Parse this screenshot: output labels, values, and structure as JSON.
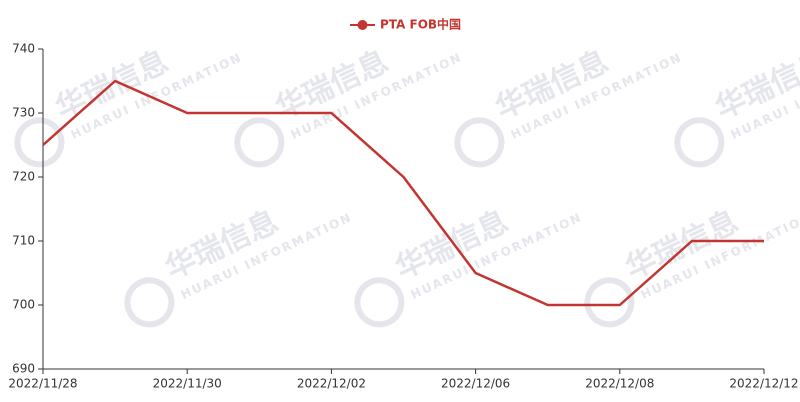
{
  "chart_data": {
    "type": "line",
    "watermark": "华瑞信息",
    "watermark_en": "HUARUI INFORMATION",
    "categories": [
      "2022/11/28",
      null,
      "2022/11/30",
      null,
      "2022/12/02",
      null,
      "2022/12/06",
      null,
      "2022/12/08",
      null,
      "2022/12/12"
    ],
    "series": [
      {
        "name": "PTA FOB中国",
        "color": "#c23531",
        "values": [
          725,
          735,
          730,
          730,
          730,
          720,
          705,
          700,
          700,
          710,
          710
        ]
      }
    ],
    "ylim": [
      690,
      740
    ],
    "yticks": [
      690,
      700,
      710,
      720,
      730,
      740
    ],
    "grid": false,
    "legend": "top"
  }
}
